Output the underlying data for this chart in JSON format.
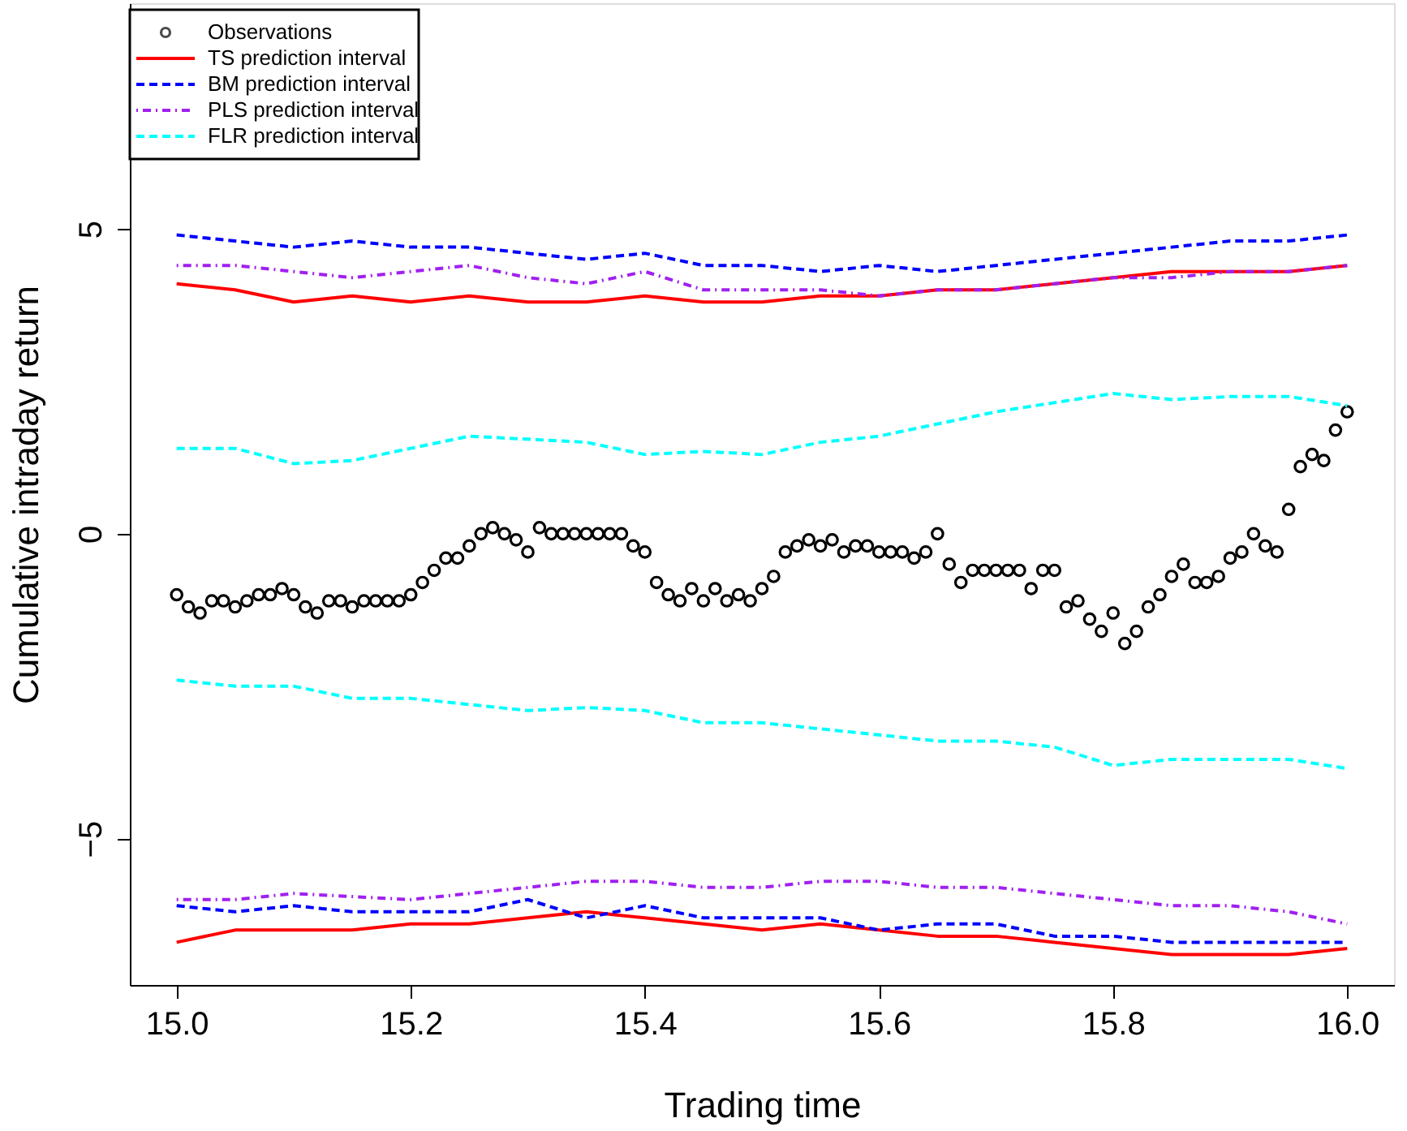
{
  "chart_data": {
    "type": "line",
    "xlabel": "Trading time",
    "ylabel": "Cumulative intraday return",
    "xlim": [
      14.96,
      16.04
    ],
    "ylim": [
      -7.4,
      8.7
    ],
    "xticks": [
      {
        "value": 15.0,
        "label": "15.0"
      },
      {
        "value": 15.2,
        "label": "15.2"
      },
      {
        "value": 15.4,
        "label": "15.4"
      },
      {
        "value": 15.6,
        "label": "15.6"
      },
      {
        "value": 15.8,
        "label": "15.8"
      },
      {
        "value": 16.0,
        "label": "16.0"
      }
    ],
    "yticks": [
      -5,
      0,
      5
    ],
    "grid": false,
    "legend": "top left",
    "series": [
      {
        "name": "Observations",
        "type": "scatter",
        "marker": "circle",
        "color": "#000000",
        "x": [
          15.0,
          15.01,
          15.02,
          15.03,
          15.04,
          15.05,
          15.06,
          15.07,
          15.08,
          15.09,
          15.1,
          15.11,
          15.12,
          15.13,
          15.14,
          15.15,
          15.16,
          15.17,
          15.18,
          15.19,
          15.2,
          15.21,
          15.22,
          15.23,
          15.24,
          15.25,
          15.26,
          15.27,
          15.28,
          15.29,
          15.3,
          15.31,
          15.32,
          15.33,
          15.34,
          15.35,
          15.36,
          15.37,
          15.38,
          15.39,
          15.4,
          15.41,
          15.42,
          15.43,
          15.44,
          15.45,
          15.46,
          15.47,
          15.48,
          15.49,
          15.5,
          15.51,
          15.52,
          15.53,
          15.54,
          15.55,
          15.56,
          15.57,
          15.58,
          15.59,
          15.6,
          15.61,
          15.62,
          15.63,
          15.64,
          15.65,
          15.66,
          15.67,
          15.68,
          15.69,
          15.7,
          15.71,
          15.72,
          15.73,
          15.74,
          15.75,
          15.76,
          15.77,
          15.78,
          15.79,
          15.8,
          15.81,
          15.82,
          15.83,
          15.84,
          15.85,
          15.86,
          15.87,
          15.88,
          15.89,
          15.9,
          15.91,
          15.92,
          15.93,
          15.94,
          15.95,
          15.96,
          15.97,
          15.98,
          15.99,
          16.0
        ],
        "values": [
          -1.0,
          -1.2,
          -1.3,
          -1.1,
          -1.1,
          -1.2,
          -1.1,
          -1.0,
          -1.0,
          -0.9,
          -1.0,
          -1.2,
          -1.3,
          -1.1,
          -1.1,
          -1.2,
          -1.1,
          -1.1,
          -1.1,
          -1.1,
          -1.0,
          -0.8,
          -0.6,
          -0.4,
          -0.4,
          -0.2,
          0.0,
          0.1,
          0.0,
          -0.1,
          -0.3,
          0.1,
          0.0,
          0.0,
          0.0,
          0.0,
          0.0,
          0.0,
          0.0,
          -0.2,
          -0.3,
          -0.8,
          -1.0,
          -1.1,
          -0.9,
          -1.1,
          -0.9,
          -1.1,
          -1.0,
          -1.1,
          -0.9,
          -0.7,
          -0.3,
          -0.2,
          -0.1,
          -0.2,
          -0.1,
          -0.3,
          -0.2,
          -0.2,
          -0.3,
          -0.3,
          -0.3,
          -0.4,
          -0.3,
          0.0,
          -0.5,
          -0.8,
          -0.6,
          -0.6,
          -0.6,
          -0.6,
          -0.6,
          -0.9,
          -0.6,
          -0.6,
          -1.2,
          -1.1,
          -1.4,
          -1.6,
          -1.3,
          -1.8,
          -1.6,
          -1.2,
          -1.0,
          -0.7,
          -0.5,
          -0.8,
          -0.8,
          -0.7,
          -0.4,
          -0.3,
          0.0,
          -0.2,
          -0.3,
          0.4,
          1.1,
          1.3,
          1.2,
          1.7,
          2.0
        ]
      },
      {
        "name": "TS prediction interval",
        "line_style": "solid",
        "color": "#ff0000",
        "x": [
          15.0,
          15.05,
          15.1,
          15.15,
          15.2,
          15.25,
          15.3,
          15.35,
          15.4,
          15.45,
          15.5,
          15.55,
          15.6,
          15.65,
          15.7,
          15.75,
          15.8,
          15.85,
          15.9,
          15.95,
          16.0
        ],
        "values": [
          4.1,
          4.0,
          3.8,
          3.9,
          3.8,
          3.9,
          3.8,
          3.8,
          3.9,
          3.8,
          3.8,
          3.9,
          3.9,
          4.0,
          4.0,
          4.1,
          4.2,
          4.3,
          4.3,
          4.3,
          4.4
        ]
      },
      {
        "line_style": "solid",
        "color": "#ff0000",
        "x": [
          15.0,
          15.05,
          15.1,
          15.15,
          15.2,
          15.25,
          15.3,
          15.35,
          15.4,
          15.45,
          15.5,
          15.55,
          15.6,
          15.65,
          15.7,
          15.75,
          15.8,
          15.85,
          15.9,
          15.95,
          16.0
        ],
        "values": [
          -6.7,
          -6.5,
          -6.5,
          -6.5,
          -6.4,
          -6.4,
          -6.3,
          -6.2,
          -6.3,
          -6.4,
          -6.5,
          -6.4,
          -6.5,
          -6.6,
          -6.6,
          -6.7,
          -6.8,
          -6.9,
          -6.9,
          -6.9,
          -6.8
        ]
      },
      {
        "name": "BM prediction interval",
        "line_style": "dashed",
        "color": "#0000ff",
        "x": [
          15.0,
          15.05,
          15.1,
          15.15,
          15.2,
          15.25,
          15.3,
          15.35,
          15.4,
          15.45,
          15.5,
          15.55,
          15.6,
          15.65,
          15.7,
          15.75,
          15.8,
          15.85,
          15.9,
          15.95,
          16.0
        ],
        "values": [
          4.9,
          4.8,
          4.7,
          4.8,
          4.7,
          4.7,
          4.6,
          4.5,
          4.6,
          4.4,
          4.4,
          4.3,
          4.4,
          4.3,
          4.4,
          4.5,
          4.6,
          4.7,
          4.8,
          4.8,
          4.9
        ]
      },
      {
        "line_style": "dashed",
        "color": "#0000ff",
        "x": [
          15.0,
          15.05,
          15.1,
          15.15,
          15.2,
          15.25,
          15.3,
          15.35,
          15.4,
          15.45,
          15.5,
          15.55,
          15.6,
          15.65,
          15.7,
          15.75,
          15.8,
          15.85,
          15.9,
          15.95,
          16.0
        ],
        "values": [
          -6.1,
          -6.2,
          -6.1,
          -6.2,
          -6.2,
          -6.2,
          -6.0,
          -6.3,
          -6.1,
          -6.3,
          -6.3,
          -6.3,
          -6.5,
          -6.4,
          -6.4,
          -6.6,
          -6.6,
          -6.7,
          -6.7,
          -6.7,
          -6.7
        ]
      },
      {
        "name": "PLS prediction interval",
        "line_style": "dashdot",
        "color": "#a020f0",
        "x": [
          15.0,
          15.05,
          15.1,
          15.15,
          15.2,
          15.25,
          15.3,
          15.35,
          15.4,
          15.45,
          15.5,
          15.55,
          15.6,
          15.65,
          15.7,
          15.75,
          15.8,
          15.85,
          15.9,
          15.95,
          16.0
        ],
        "values": [
          4.4,
          4.4,
          4.3,
          4.2,
          4.3,
          4.4,
          4.2,
          4.1,
          4.3,
          4.0,
          4.0,
          4.0,
          3.9,
          4.0,
          4.0,
          4.1,
          4.2,
          4.2,
          4.3,
          4.3,
          4.4
        ]
      },
      {
        "line_style": "dashdot",
        "color": "#a020f0",
        "x": [
          15.0,
          15.05,
          15.1,
          15.15,
          15.2,
          15.25,
          15.3,
          15.35,
          15.4,
          15.45,
          15.5,
          15.55,
          15.6,
          15.65,
          15.7,
          15.75,
          15.8,
          15.85,
          15.9,
          15.95,
          16.0
        ],
        "values": [
          -6.0,
          -6.0,
          -5.9,
          -5.95,
          -6.0,
          -5.9,
          -5.8,
          -5.7,
          -5.7,
          -5.8,
          -5.8,
          -5.7,
          -5.7,
          -5.8,
          -5.8,
          -5.9,
          -6.0,
          -6.1,
          -6.1,
          -6.2,
          -6.4
        ]
      },
      {
        "name": "FLR prediction interval",
        "line_style": "dashed",
        "color": "#00ffff",
        "x": [
          15.0,
          15.05,
          15.1,
          15.15,
          15.2,
          15.25,
          15.3,
          15.35,
          15.4,
          15.45,
          15.5,
          15.55,
          15.6,
          15.65,
          15.7,
          15.75,
          15.8,
          15.85,
          15.9,
          15.95,
          16.0
        ],
        "values": [
          1.4,
          1.4,
          1.15,
          1.2,
          1.4,
          1.6,
          1.55,
          1.5,
          1.3,
          1.35,
          1.3,
          1.5,
          1.6,
          1.8,
          2.0,
          2.15,
          2.3,
          2.2,
          2.25,
          2.25,
          2.1
        ]
      },
      {
        "line_style": "dashed",
        "color": "#00ffff",
        "x": [
          15.0,
          15.05,
          15.1,
          15.15,
          15.2,
          15.25,
          15.3,
          15.35,
          15.4,
          15.45,
          15.5,
          15.55,
          15.6,
          15.65,
          15.7,
          15.75,
          15.8,
          15.85,
          15.9,
          15.95,
          16.0
        ],
        "values": [
          -2.4,
          -2.5,
          -2.5,
          -2.7,
          -2.7,
          -2.8,
          -2.9,
          -2.85,
          -2.9,
          -3.1,
          -3.1,
          -3.2,
          -3.3,
          -3.4,
          -3.4,
          -3.5,
          -3.8,
          -3.7,
          -3.7,
          -3.7,
          -3.85
        ]
      }
    ]
  }
}
